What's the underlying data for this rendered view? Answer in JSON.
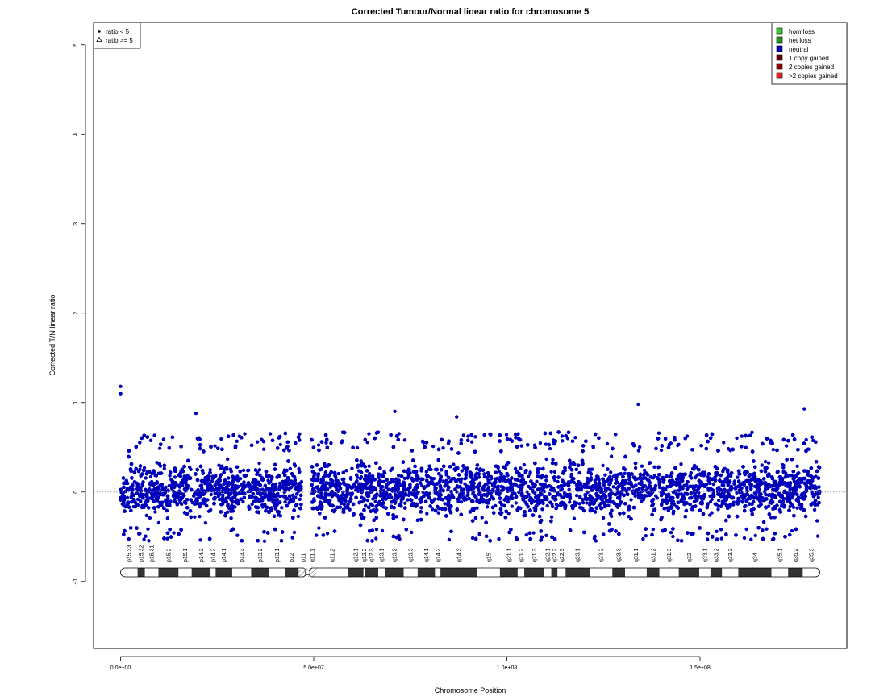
{
  "chart_data": {
    "type": "scatter",
    "title": "Corrected Tumour/Normal linear ratio for chromosome  5",
    "xlabel": "Chromosome Position",
    "ylabel": "Corrected T/N linear ratio",
    "xlim": [
      -7000000,
      188000000
    ],
    "ylim": [
      -1.75,
      5.25
    ],
    "x_ticks": [
      0,
      50000000,
      100000000,
      150000000
    ],
    "x_tick_labels": [
      "0.0e+00",
      "5.0e+07",
      "1.0e+08",
      "1.5e+08"
    ],
    "y_ticks": [
      -1,
      0,
      1,
      2,
      3,
      4,
      5
    ],
    "y_tick_labels": [
      "−1",
      "0",
      "1",
      "2",
      "3",
      "4",
      "5"
    ],
    "reference_line_y": 0,
    "grid": false,
    "marker_legend": {
      "position": "top-left",
      "entries": [
        {
          "symbol": "dot",
          "label": "ratio < 5"
        },
        {
          "symbol": "triangle",
          "label": "ratio >= 5"
        }
      ]
    },
    "state_legend": {
      "position": "top-right",
      "entries": [
        {
          "label": "hom loss",
          "color": "#33cc33"
        },
        {
          "label": "het loss",
          "color": "#1a9e1a"
        },
        {
          "label": "neutral",
          "color": "#0000bb"
        },
        {
          "label": "1 copy gained",
          "color": "#660000"
        },
        {
          "label": "2 copies gained",
          "color": "#990000"
        },
        {
          "label": ">2 copies gained",
          "color": "#ee2222"
        }
      ]
    },
    "series": [
      {
        "state": "neutral",
        "color": "#0000bb",
        "x_range": [
          0,
          181000000
        ],
        "gap": [
          47000000,
          49500000
        ],
        "typical_range": [
          -0.4,
          0.45
        ],
        "extremes": [
          [
            0,
            1.18
          ],
          [
            0,
            1.1
          ],
          [
            19500000,
            0.88
          ],
          [
            71000000,
            0.9
          ],
          [
            87000000,
            0.84
          ],
          [
            134000000,
            0.98
          ],
          [
            177000000,
            0.93
          ]
        ]
      }
    ],
    "ideogram": {
      "centromere": 48400000,
      "bands": [
        {
          "name": "p15.33",
          "start": 0,
          "end": 4400000,
          "stain": "gneg"
        },
        {
          "name": "p15.32",
          "start": 4400000,
          "end": 6300000,
          "stain": "gpos"
        },
        {
          "name": "p15.31",
          "start": 6300000,
          "end": 9800000,
          "stain": "gneg"
        },
        {
          "name": "p15.2",
          "start": 9800000,
          "end": 15000000,
          "stain": "gpos"
        },
        {
          "name": "p15.1",
          "start": 15000000,
          "end": 18400000,
          "stain": "gneg"
        },
        {
          "name": "p14.3",
          "start": 18400000,
          "end": 23300000,
          "stain": "gpos"
        },
        {
          "name": "p14.2",
          "start": 23300000,
          "end": 24600000,
          "stain": "gneg"
        },
        {
          "name": "p14.1",
          "start": 24600000,
          "end": 28900000,
          "stain": "gpos"
        },
        {
          "name": "p13.3",
          "start": 28900000,
          "end": 33800000,
          "stain": "gneg"
        },
        {
          "name": "p13.2",
          "start": 33800000,
          "end": 38400000,
          "stain": "gpos"
        },
        {
          "name": "p13.1",
          "start": 38400000,
          "end": 42500000,
          "stain": "gneg"
        },
        {
          "name": "p12",
          "start": 42500000,
          "end": 46100000,
          "stain": "gpos"
        },
        {
          "name": "p11",
          "start": 46100000,
          "end": 48400000,
          "stain": "acen"
        },
        {
          "name": "q11.1",
          "start": 48400000,
          "end": 50700000,
          "stain": "acen"
        },
        {
          "name": "q11.2",
          "start": 50700000,
          "end": 58900000,
          "stain": "gneg"
        },
        {
          "name": "q12.1",
          "start": 58900000,
          "end": 62900000,
          "stain": "gpos"
        },
        {
          "name": "q12.2",
          "start": 62900000,
          "end": 63200000,
          "stain": "gneg"
        },
        {
          "name": "q12.3",
          "start": 63200000,
          "end": 66700000,
          "stain": "gpos"
        },
        {
          "name": "q13.1",
          "start": 66700000,
          "end": 68400000,
          "stain": "gneg"
        },
        {
          "name": "q13.2",
          "start": 68400000,
          "end": 73300000,
          "stain": "gpos"
        },
        {
          "name": "q13.3",
          "start": 73300000,
          "end": 76900000,
          "stain": "gneg"
        },
        {
          "name": "q14.1",
          "start": 76900000,
          "end": 81400000,
          "stain": "gpos"
        },
        {
          "name": "q14.2",
          "start": 81400000,
          "end": 82800000,
          "stain": "gneg"
        },
        {
          "name": "q14.3",
          "start": 82800000,
          "end": 92300000,
          "stain": "gpos"
        },
        {
          "name": "q15",
          "start": 92300000,
          "end": 98200000,
          "stain": "gneg"
        },
        {
          "name": "q21.1",
          "start": 98200000,
          "end": 102800000,
          "stain": "gpos"
        },
        {
          "name": "q21.2",
          "start": 102800000,
          "end": 104500000,
          "stain": "gneg"
        },
        {
          "name": "q21.3",
          "start": 104500000,
          "end": 109600000,
          "stain": "gpos"
        },
        {
          "name": "q22.1",
          "start": 109600000,
          "end": 111500000,
          "stain": "gneg"
        },
        {
          "name": "q22.2",
          "start": 111500000,
          "end": 113100000,
          "stain": "gpos"
        },
        {
          "name": "q22.3",
          "start": 113100000,
          "end": 115200000,
          "stain": "gneg"
        },
        {
          "name": "q23.1",
          "start": 115200000,
          "end": 121400000,
          "stain": "gpos"
        },
        {
          "name": "q23.2",
          "start": 121400000,
          "end": 127300000,
          "stain": "gneg"
        },
        {
          "name": "q23.3",
          "start": 127300000,
          "end": 130600000,
          "stain": "gpos"
        },
        {
          "name": "q31.1",
          "start": 130600000,
          "end": 136200000,
          "stain": "gneg"
        },
        {
          "name": "q31.2",
          "start": 136200000,
          "end": 139500000,
          "stain": "gpos"
        },
        {
          "name": "q31.3",
          "start": 139500000,
          "end": 144500000,
          "stain": "gneg"
        },
        {
          "name": "q32",
          "start": 144500000,
          "end": 149800000,
          "stain": "gpos"
        },
        {
          "name": "q33.1",
          "start": 149800000,
          "end": 152700000,
          "stain": "gneg"
        },
        {
          "name": "q33.2",
          "start": 152700000,
          "end": 155700000,
          "stain": "gpos"
        },
        {
          "name": "q33.3",
          "start": 155700000,
          "end": 159900000,
          "stain": "gneg"
        },
        {
          "name": "q34",
          "start": 159900000,
          "end": 168500000,
          "stain": "gpos"
        },
        {
          "name": "q35.1",
          "start": 168500000,
          "end": 172800000,
          "stain": "gneg"
        },
        {
          "name": "q35.2",
          "start": 172800000,
          "end": 176600000,
          "stain": "gpos"
        },
        {
          "name": "q35.3",
          "start": 176600000,
          "end": 181000000,
          "stain": "gneg"
        }
      ]
    }
  }
}
